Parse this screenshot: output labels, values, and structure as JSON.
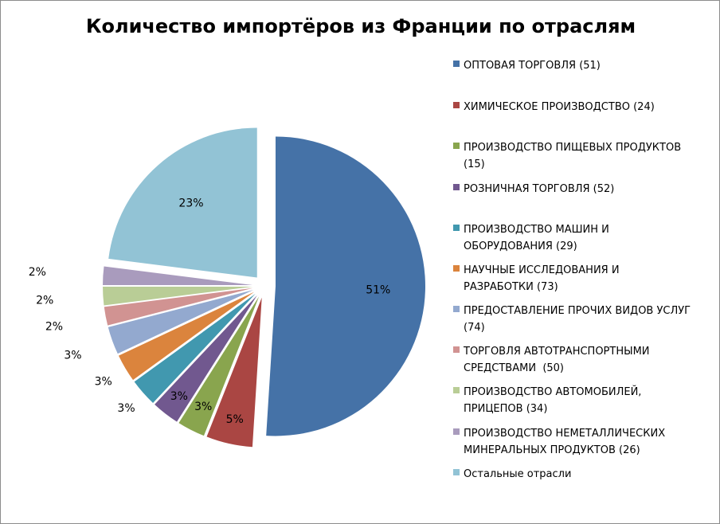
{
  "chart_data": {
    "type": "pie",
    "title": "Количество импортёров из Франции по отраслям",
    "exploded": true,
    "legend_position": "right",
    "slices": [
      {
        "name": "ОПТОВАЯ ТОРГОВЛЯ (51)",
        "value": 51,
        "label": "51%",
        "color": "#4572A7"
      },
      {
        "name": "ХИМИЧЕСКОЕ ПРОИЗВОДСТВО (24)",
        "value": 5,
        "label": "5%",
        "color": "#AA4643"
      },
      {
        "name": "ПРОИЗВОДСТВО ПИЩЕВЫХ ПРОДУКТОВ (15)",
        "value": 3,
        "label": "3%",
        "color": "#89A54E"
      },
      {
        "name": "РОЗНИЧНАЯ ТОРГОВЛЯ (52)",
        "value": 3,
        "label": "3%",
        "color": "#71588F"
      },
      {
        "name": "ПРОИЗВОДСТВО МАШИН И ОБОРУДОВАНИЯ (29)",
        "value": 3,
        "label": "3%",
        "color": "#4198AF"
      },
      {
        "name": "НАУЧНЫЕ ИССЛЕДОВАНИЯ И РАЗРАБОТКИ (73)",
        "value": 3,
        "label": "3%",
        "color": "#DB843D"
      },
      {
        "name": "ПРЕДОСТАВЛЕНИЕ ПРОЧИХ ВИДОВ УСЛУГ (74)",
        "value": 3,
        "label": "3%",
        "color": "#93A9CF"
      },
      {
        "name": "ТОРГОВЛЯ АВТОТРАНСПОРТНЫМИ СРЕДСТВАМИ  (50)",
        "value": 2,
        "label": "2%",
        "color": "#D19392"
      },
      {
        "name": "ПРОИЗВОДСТВО АВТОМОБИЛЕЙ, ПРИЦЕПОВ (34)",
        "value": 2,
        "label": "2%",
        "color": "#B9CD96"
      },
      {
        "name": "ПРОИЗВОДСТВО НЕМЕТАЛЛИЧЕСКИХ МИНЕРАЛЬНЫХ ПРОДУКТОВ (26)",
        "value": 2,
        "label": "2%",
        "color": "#A99BBD"
      },
      {
        "name": "Остальные отрасли",
        "value": 23,
        "label": "23%",
        "color": "#92C3D5"
      }
    ]
  }
}
